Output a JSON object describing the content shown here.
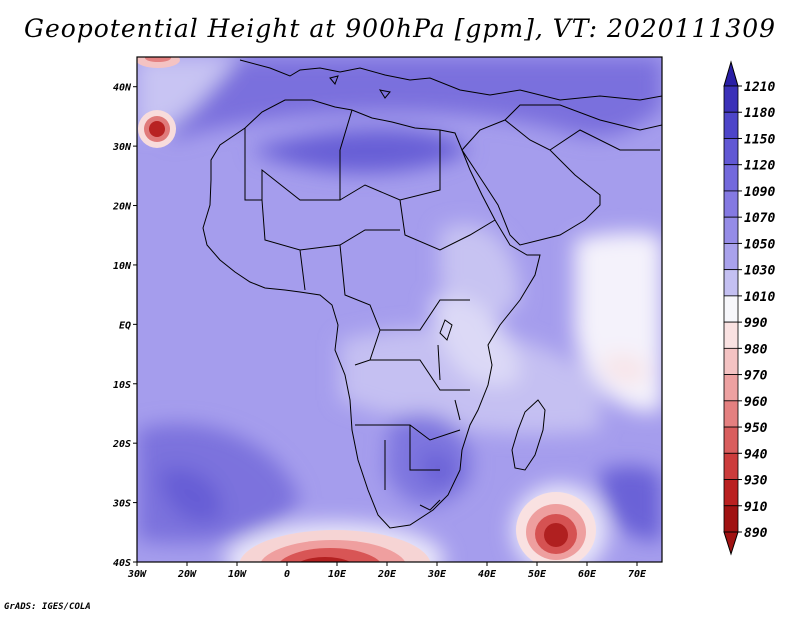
{
  "title": "Geopotential Height at 900hPa [gpm], VT: 2020111309",
  "footer": "GrADS: IGES/COLA",
  "map": {
    "projection": "latlon",
    "lon_range": [
      -30,
      75
    ],
    "lat_range": [
      -40,
      45
    ],
    "lon_ticks": [
      "30W",
      "20W",
      "10W",
      "0",
      "10E",
      "20E",
      "30E",
      "40E",
      "50E",
      "60E",
      "70E"
    ],
    "lat_ticks": [
      "40N",
      "30N",
      "20N",
      "10N",
      "EQ",
      "10S",
      "20S",
      "30S",
      "40S"
    ]
  },
  "colorbar": {
    "levels": [
      "1210",
      "1180",
      "1150",
      "1120",
      "1090",
      "1070",
      "1050",
      "1030",
      "1010",
      "990",
      "980",
      "970",
      "960",
      "950",
      "940",
      "930",
      "910",
      "890"
    ],
    "colors": [
      "#2a1fa6",
      "#3b31b8",
      "#4d45c9",
      "#6158d4",
      "#7369dc",
      "#8479e2",
      "#958ce7",
      "#a9a2ec",
      "#c4c0f2",
      "#f7f7fb",
      "#fae2e2",
      "#f4c3c3",
      "#eda1a1",
      "#e48080",
      "#d95e5e",
      "#cc3c3c",
      "#ba2020",
      "#a01212"
    ]
  }
}
